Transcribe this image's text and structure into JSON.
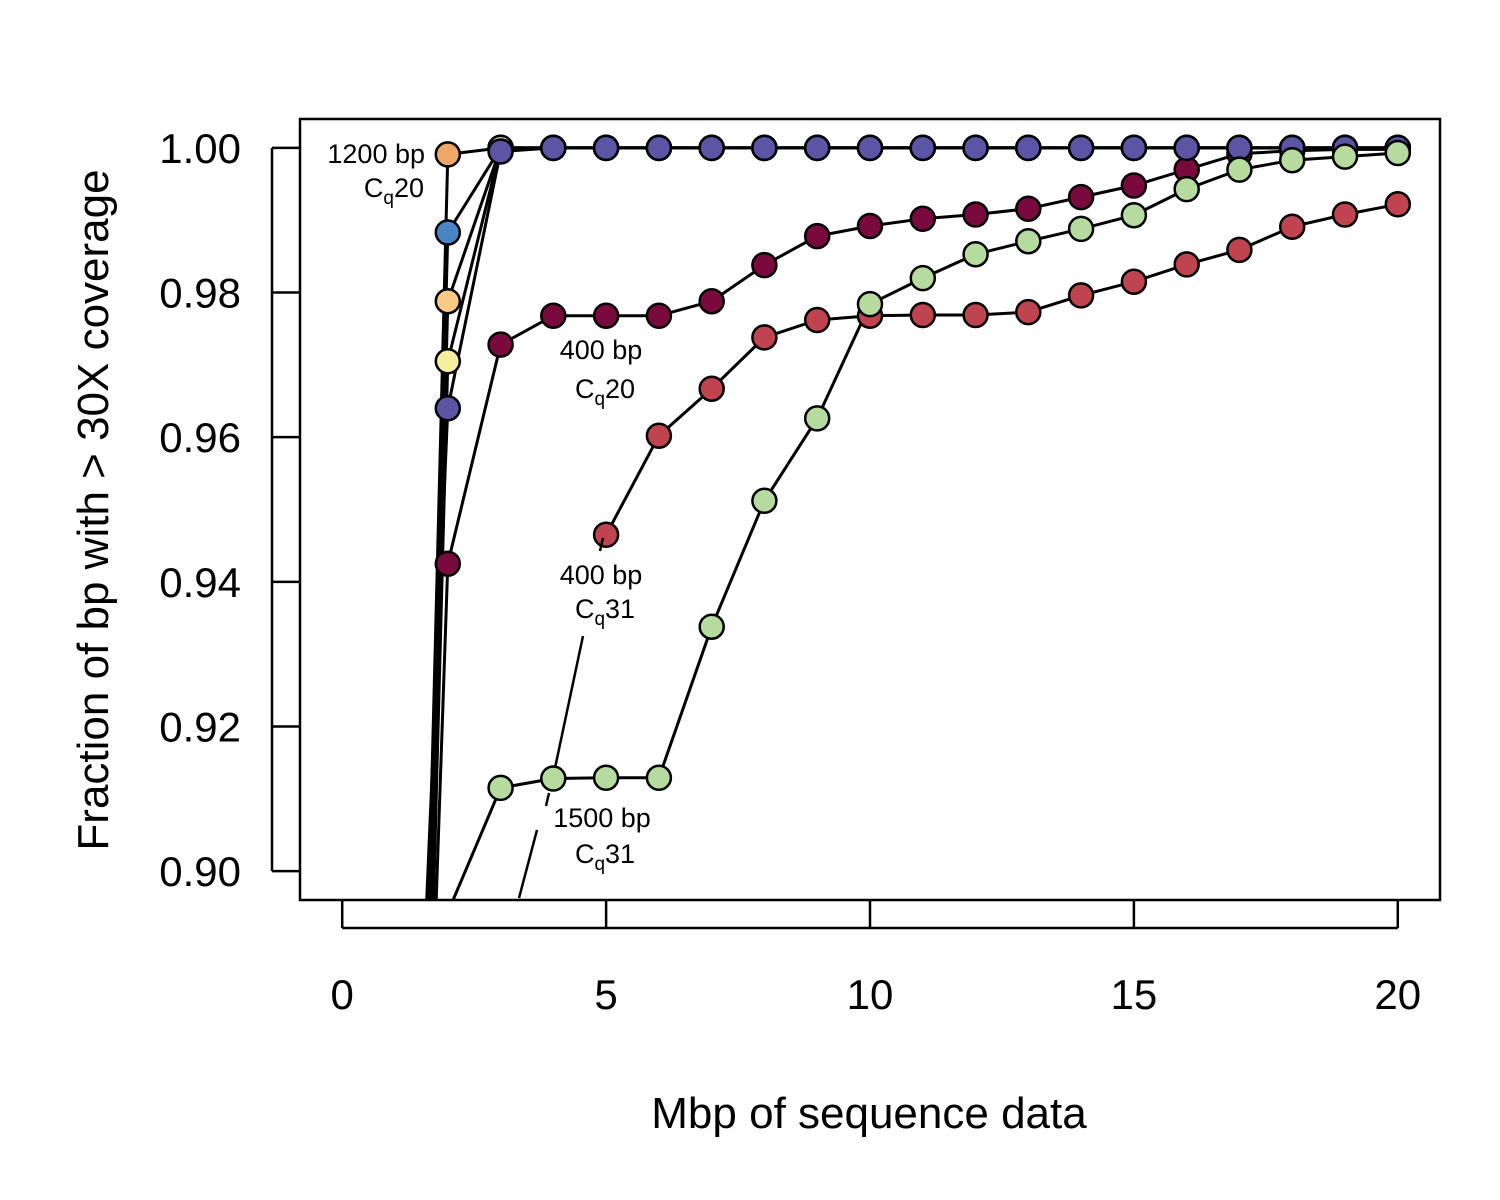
{
  "chart_data": {
    "type": "line",
    "title": "",
    "xlabel": "Mbp of sequence data",
    "ylabel": "Fraction of bp with > 30X coverage",
    "xlim": [
      -0.8,
      20.8
    ],
    "ylim": [
      0.896,
      1.004
    ],
    "x_ticks": [
      0,
      5,
      10,
      15,
      20
    ],
    "x_tick_labels": [
      "0",
      "5",
      "10",
      "15",
      "20"
    ],
    "y_ticks": [
      0.9,
      0.92,
      0.94,
      0.96,
      0.98,
      1.0
    ],
    "y_tick_labels": [
      "0.90",
      "0.92",
      "0.94",
      "0.96",
      "0.98",
      "1.00"
    ],
    "grid": false,
    "legend": "none",
    "series": [
      {
        "color": "#EDA766",
        "x": [
          1.64,
          2,
          3,
          4,
          5,
          6,
          7,
          8,
          9,
          10,
          11,
          12,
          13,
          14,
          15,
          16,
          17,
          18,
          19,
          20
        ],
        "y": [
          0.896,
          0.9991,
          1.0,
          1.0,
          1.0,
          1.0,
          1.0,
          1.0,
          1.0,
          1.0,
          1.0,
          1.0,
          1.0,
          1.0,
          1.0,
          1.0,
          1.0,
          1.0,
          1.0,
          1.0
        ]
      },
      {
        "color": "#4A84C4",
        "x": [
          1.66,
          2,
          3,
          4,
          5,
          6,
          7,
          8,
          9,
          10,
          11,
          12,
          13,
          14,
          15,
          16,
          17,
          18,
          19,
          20
        ],
        "y": [
          0.896,
          0.9883,
          1.0,
          1.0,
          1.0,
          1.0,
          1.0,
          1.0,
          1.0,
          1.0,
          1.0,
          1.0,
          1.0,
          1.0,
          1.0,
          1.0,
          1.0,
          1.0,
          1.0,
          1.0
        ]
      },
      {
        "color": "#F8CA86",
        "x": [
          1.7,
          2,
          3,
          4,
          5,
          6,
          7,
          8,
          9,
          10,
          11,
          12,
          13,
          14,
          15,
          16,
          17,
          18,
          19,
          20
        ],
        "y": [
          0.896,
          0.9788,
          1.0,
          1.0,
          1.0,
          1.0,
          1.0,
          1.0,
          1.0,
          1.0,
          1.0,
          1.0,
          1.0,
          1.0,
          1.0,
          1.0,
          1.0,
          1.0,
          1.0,
          1.0
        ]
      },
      {
        "color": "#F4EE9E",
        "x": [
          1.73,
          2,
          3,
          4,
          5,
          6,
          7,
          8,
          9,
          10,
          11,
          12,
          13,
          14,
          15,
          16,
          17,
          18,
          19,
          20
        ],
        "y": [
          0.896,
          0.9705,
          1.0,
          1.0,
          1.0,
          1.0,
          1.0,
          1.0,
          1.0,
          1.0,
          1.0,
          1.0,
          1.0,
          1.0,
          1.0,
          1.0,
          1.0,
          1.0,
          1.0,
          1.0
        ]
      },
      {
        "color": "#7A0A3E",
        "x": [
          1.78,
          2,
          3,
          4,
          5,
          6,
          7,
          8,
          9,
          10,
          11,
          12,
          13,
          14,
          15,
          16,
          17,
          18,
          19,
          20
        ],
        "y": [
          0.896,
          0.9425,
          0.9728,
          0.9768,
          0.9768,
          0.9768,
          0.9788,
          0.9838,
          0.9878,
          0.9892,
          0.9902,
          0.9908,
          0.9916,
          0.9932,
          0.9948,
          0.997,
          0.9992,
          0.9996,
          0.9998,
          0.9998
        ]
      },
      {
        "color": "#5C54A4",
        "x": [
          1.6,
          2,
          3,
          4,
          5,
          6,
          7,
          8,
          9,
          10,
          11,
          12,
          13,
          14,
          15,
          16,
          17,
          18,
          19,
          20
        ],
        "y": [
          0.896,
          0.964,
          0.9995,
          1.0,
          1.0,
          1.0,
          1.0,
          1.0,
          1.0,
          1.0,
          1.0,
          1.0,
          1.0,
          1.0,
          1.0,
          1.0,
          1.0,
          1.0,
          1.0,
          1.0
        ]
      },
      {
        "color": "#C0444F",
        "x": [
          5,
          6,
          7,
          8,
          9,
          10,
          11,
          12,
          13,
          14,
          15,
          16,
          17,
          18,
          19,
          20
        ],
        "y": [
          0.9465,
          0.9602,
          0.9667,
          0.9738,
          0.9762,
          0.9768,
          0.9769,
          0.9769,
          0.9773,
          0.9796,
          0.9815,
          0.9839,
          0.9859,
          0.9891,
          0.9908,
          0.9922
        ]
      },
      {
        "color": "#B6DB9E",
        "x": [
          2.1,
          3,
          4,
          5,
          6,
          7,
          8,
          9,
          10,
          11,
          12,
          13,
          14,
          15,
          16,
          17,
          18,
          19,
          20
        ],
        "y": [
          0.896,
          0.9115,
          0.9128,
          0.9129,
          0.9129,
          0.9338,
          0.9512,
          0.9626,
          0.9784,
          0.982,
          0.9853,
          0.9871,
          0.9888,
          0.9907,
          0.9943,
          0.997,
          0.9983,
          0.9988,
          0.9993
        ]
      }
    ],
    "annotations": [
      {
        "line1": "1200 bp",
        "line2_main": "C",
        "line2_sub": "q",
        "line2_rest": "20"
      },
      {
        "line1": "400 bp",
        "line2_main": "C",
        "line2_sub": "q",
        "line2_rest": "20"
      },
      {
        "line1": "400 bp",
        "line2_main": "C",
        "line2_sub": "q",
        "line2_rest": "31"
      },
      {
        "line1": "1500 bp",
        "line2_main": "C",
        "line2_sub": "q",
        "line2_rest": "31"
      }
    ]
  }
}
